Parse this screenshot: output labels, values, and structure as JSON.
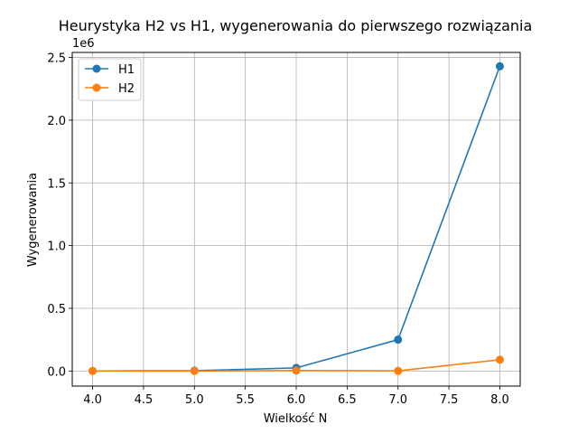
{
  "chart_data": {
    "type": "line",
    "title": "Heurystyka H2 vs H1, wygenerowania do pierwszego rozwiązania",
    "xlabel": "Wielkość N",
    "ylabel": "Wygenerowania",
    "y_offset_label": "1e6",
    "x": [
      4,
      5,
      6,
      7,
      8
    ],
    "xlim": [
      3.8,
      8.2
    ],
    "ylim": [
      -0.12,
      2.54
    ],
    "x_ticks": [
      4.0,
      4.5,
      5.0,
      5.5,
      6.0,
      6.5,
      7.0,
      7.5,
      8.0
    ],
    "x_tick_labels": [
      "4.0",
      "4.5",
      "5.0",
      "5.5",
      "6.0",
      "6.5",
      "7.0",
      "7.5",
      "8.0"
    ],
    "y_ticks": [
      0.0,
      0.5,
      1.0,
      1.5,
      2.0,
      2.5
    ],
    "y_tick_labels": [
      "0.0",
      "0.5",
      "1.0",
      "1.5",
      "2.0",
      "2.5"
    ],
    "y_scale_multiplier": 1000000,
    "grid": true,
    "legend_position": "top-left",
    "series": [
      {
        "name": "H1",
        "color": "#1f77b4",
        "values": [
          0.0005,
          0.003,
          0.025,
          0.25,
          2.43
        ]
      },
      {
        "name": "H2",
        "color": "#ff7f0e",
        "values": [
          0.0002,
          0.0005,
          0.004,
          0.0015,
          0.09
        ]
      }
    ]
  }
}
